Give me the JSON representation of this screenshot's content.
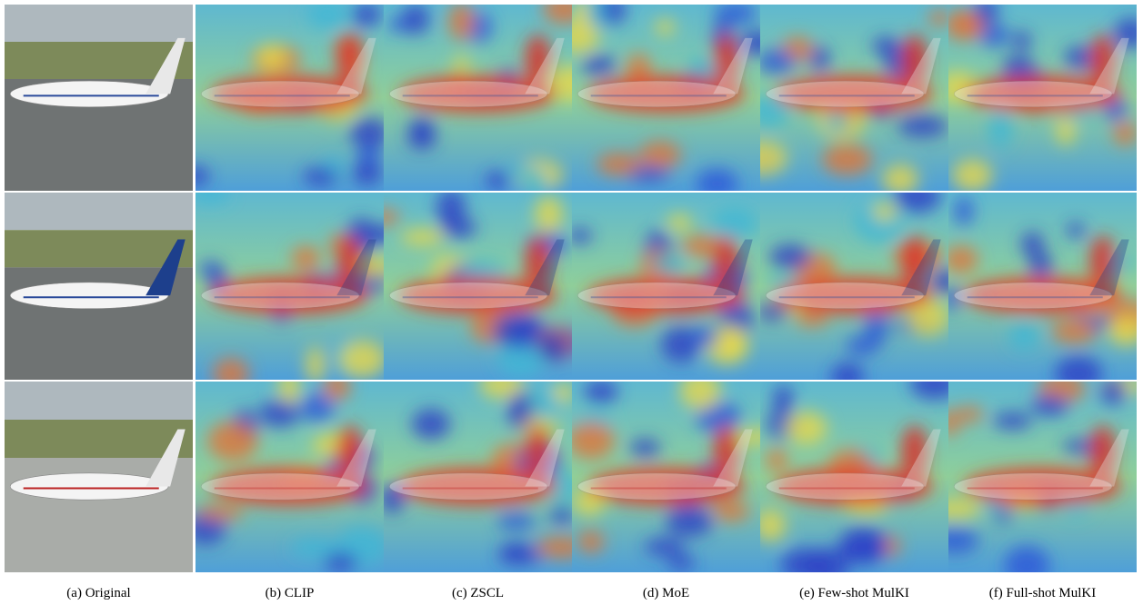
{
  "figure": {
    "captions": [
      "(a) Original",
      "(b) CLIP",
      "(c) ZSCL",
      "(d) MoE",
      "(e) Few-shot MulKI",
      "(f) Full-shot MulKI"
    ]
  }
}
